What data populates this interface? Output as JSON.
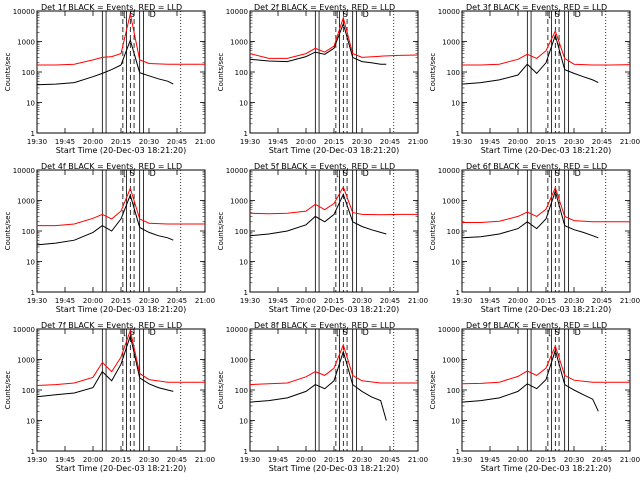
{
  "figure": {
    "xlabel": "Start Time (20-Dec-03 18:21:20)",
    "ylabel": "Counts/sec",
    "x_tick_labels": [
      "19:30",
      "19:45",
      "20:00",
      "20:15",
      "20:30",
      "20:45",
      "21:00"
    ],
    "y_tick_labels": [
      "1",
      "10",
      "100",
      "1000",
      "10000"
    ],
    "colors": {
      "events": "#000000",
      "lld": "#ff0000",
      "axes": "#000000",
      "background": "#ffffff"
    },
    "marker_glyphs": [
      "[",
      "S",
      "D"
    ]
  },
  "chart_data": [
    {
      "type": "line",
      "title": "Det 1f BLACK = Events, RED = LLD",
      "detector": "1f",
      "xlim": [
        "19:30",
        "21:00"
      ],
      "ylim": [
        1,
        10000
      ],
      "yscale": "log",
      "vertical_solid": [
        "20:05",
        "20:07",
        "20:18",
        "20:25",
        "20:27"
      ],
      "vertical_dashed": [
        "20:16",
        "20:20",
        "20:22"
      ],
      "vertical_dotted": [
        "19:30",
        "20:47"
      ],
      "series": [
        {
          "name": "Events",
          "color": "#000000",
          "x": [
            "19:30",
            "19:40",
            "19:50",
            "20:00",
            "20:05",
            "20:10",
            "20:15",
            "20:20",
            "20:25",
            "20:30",
            "20:35",
            "20:40",
            "20:43"
          ],
          "values": [
            38,
            40,
            45,
            70,
            90,
            120,
            170,
            1100,
            95,
            75,
            60,
            50,
            40
          ]
        },
        {
          "name": "LLD",
          "color": "#ff0000",
          "x": [
            "19:30",
            "19:40",
            "19:50",
            "20:00",
            "20:05",
            "20:10",
            "20:15",
            "20:20",
            "20:25",
            "20:30",
            "20:40",
            "20:50",
            "21:00"
          ],
          "values": [
            170,
            170,
            180,
            250,
            300,
            320,
            400,
            8000,
            250,
            190,
            180,
            180,
            180
          ]
        }
      ]
    },
    {
      "type": "line",
      "title": "Det 2f BLACK = Events, RED = LLD",
      "detector": "2f",
      "xlim": [
        "19:30",
        "21:00"
      ],
      "ylim": [
        1,
        10000
      ],
      "yscale": "log",
      "vertical_solid": [
        "20:05",
        "20:07",
        "20:18",
        "20:25",
        "20:27"
      ],
      "vertical_dashed": [
        "20:16",
        "20:20",
        "20:22"
      ],
      "vertical_dotted": [
        "19:30",
        "20:47"
      ],
      "series": [
        {
          "name": "Events",
          "color": "#000000",
          "x": [
            "19:30",
            "19:40",
            "19:50",
            "20:00",
            "20:05",
            "20:10",
            "20:15",
            "20:20",
            "20:25",
            "20:30",
            "20:35",
            "20:40",
            "20:43"
          ],
          "values": [
            260,
            230,
            220,
            320,
            450,
            380,
            600,
            3800,
            300,
            220,
            200,
            180,
            180
          ]
        },
        {
          "name": "LLD",
          "color": "#ff0000",
          "x": [
            "19:30",
            "19:40",
            "19:50",
            "20:00",
            "20:05",
            "20:10",
            "20:15",
            "20:20",
            "20:25",
            "20:30",
            "20:40",
            "20:50",
            "21:00"
          ],
          "values": [
            400,
            280,
            280,
            400,
            600,
            450,
            700,
            6000,
            400,
            300,
            330,
            350,
            360
          ]
        }
      ]
    },
    {
      "type": "line",
      "title": "Det 3f BLACK = Events, RED = LLD",
      "detector": "3f",
      "xlim": [
        "19:30",
        "21:00"
      ],
      "ylim": [
        1,
        10000
      ],
      "yscale": "log",
      "vertical_solid": [
        "20:05",
        "20:07",
        "20:18",
        "20:25",
        "20:27"
      ],
      "vertical_dashed": [
        "20:16",
        "20:20",
        "20:22"
      ],
      "vertical_dotted": [
        "19:30",
        "20:47"
      ],
      "series": [
        {
          "name": "Events",
          "color": "#000000",
          "x": [
            "19:30",
            "19:40",
            "19:50",
            "20:00",
            "20:05",
            "20:10",
            "20:15",
            "20:20",
            "20:25",
            "20:30",
            "20:35",
            "20:40",
            "20:43"
          ],
          "values": [
            40,
            45,
            55,
            80,
            180,
            90,
            200,
            1600,
            120,
            90,
            70,
            55,
            45
          ]
        },
        {
          "name": "LLD",
          "color": "#ff0000",
          "x": [
            "19:30",
            "19:40",
            "19:50",
            "20:00",
            "20:05",
            "20:10",
            "20:15",
            "20:20",
            "20:25",
            "20:30",
            "20:40",
            "20:50",
            "21:00"
          ],
          "values": [
            170,
            170,
            180,
            260,
            380,
            280,
            500,
            2200,
            280,
            180,
            170,
            170,
            175
          ]
        }
      ]
    },
    {
      "type": "line",
      "title": "Det 4f BLACK = Events, RED = LLD",
      "detector": "4f",
      "xlim": [
        "19:30",
        "21:00"
      ],
      "ylim": [
        1,
        10000
      ],
      "yscale": "log",
      "vertical_solid": [
        "20:05",
        "20:07",
        "20:18",
        "20:25",
        "20:27"
      ],
      "vertical_dashed": [
        "20:16",
        "20:20",
        "20:22"
      ],
      "vertical_dotted": [
        "19:30",
        "20:47"
      ],
      "series": [
        {
          "name": "Events",
          "color": "#000000",
          "x": [
            "19:30",
            "19:40",
            "19:50",
            "20:00",
            "20:05",
            "20:10",
            "20:15",
            "20:20",
            "20:25",
            "20:30",
            "20:35",
            "20:40",
            "20:43"
          ],
          "values": [
            35,
            40,
            50,
            90,
            150,
            100,
            250,
            1500,
            130,
            90,
            70,
            60,
            50
          ]
        },
        {
          "name": "LLD",
          "color": "#ff0000",
          "x": [
            "19:30",
            "19:40",
            "19:50",
            "20:00",
            "20:05",
            "20:10",
            "20:15",
            "20:20",
            "20:25",
            "20:30",
            "20:40",
            "20:50",
            "21:00"
          ],
          "values": [
            150,
            150,
            170,
            260,
            350,
            250,
            450,
            2500,
            250,
            180,
            170,
            170,
            170
          ]
        }
      ]
    },
    {
      "type": "line",
      "title": "Det 5f BLACK = Events, RED = LLD",
      "detector": "5f",
      "xlim": [
        "19:30",
        "21:00"
      ],
      "ylim": [
        1,
        10000
      ],
      "yscale": "log",
      "vertical_solid": [
        "20:05",
        "20:07",
        "20:18",
        "20:25",
        "20:27"
      ],
      "vertical_dashed": [
        "20:16",
        "20:20",
        "20:22"
      ],
      "vertical_dotted": [
        "19:30",
        "20:47"
      ],
      "series": [
        {
          "name": "Events",
          "color": "#000000",
          "x": [
            "19:30",
            "19:40",
            "19:50",
            "20:00",
            "20:05",
            "20:10",
            "20:15",
            "20:20",
            "20:25",
            "20:30",
            "20:35",
            "20:40",
            "20:43"
          ],
          "values": [
            70,
            80,
            100,
            160,
            300,
            200,
            350,
            1600,
            200,
            140,
            110,
            90,
            80
          ]
        },
        {
          "name": "LLD",
          "color": "#ff0000",
          "x": [
            "19:30",
            "19:40",
            "19:50",
            "20:00",
            "20:05",
            "20:10",
            "20:15",
            "20:20",
            "20:25",
            "20:30",
            "20:40",
            "20:50",
            "21:00"
          ],
          "values": [
            380,
            370,
            380,
            450,
            750,
            500,
            800,
            2800,
            400,
            350,
            340,
            350,
            350
          ]
        }
      ]
    },
    {
      "type": "line",
      "title": "Det 6f BLACK = Events, RED = LLD",
      "detector": "6f",
      "xlim": [
        "19:30",
        "21:00"
      ],
      "ylim": [
        1,
        10000
      ],
      "yscale": "log",
      "vertical_solid": [
        "20:05",
        "20:07",
        "20:18",
        "20:25",
        "20:27"
      ],
      "vertical_dashed": [
        "20:16",
        "20:20",
        "20:22"
      ],
      "vertical_dotted": [
        "19:30",
        "20:47"
      ],
      "series": [
        {
          "name": "Events",
          "color": "#000000",
          "x": [
            "19:30",
            "19:40",
            "19:50",
            "20:00",
            "20:05",
            "20:10",
            "20:15",
            "20:20",
            "20:25",
            "20:30",
            "20:35",
            "20:40",
            "20:43"
          ],
          "values": [
            60,
            65,
            80,
            120,
            200,
            120,
            250,
            2000,
            150,
            110,
            90,
            70,
            60
          ]
        },
        {
          "name": "LLD",
          "color": "#ff0000",
          "x": [
            "19:30",
            "19:40",
            "19:50",
            "20:00",
            "20:05",
            "20:10",
            "20:15",
            "20:20",
            "20:25",
            "20:30",
            "20:40",
            "20:50",
            "21:00"
          ],
          "values": [
            190,
            190,
            210,
            300,
            420,
            300,
            520,
            2600,
            300,
            220,
            200,
            200,
            200
          ]
        }
      ]
    },
    {
      "type": "line",
      "title": "Det 7f BLACK = Events, RED = LLD",
      "detector": "7f",
      "xlim": [
        "19:30",
        "21:00"
      ],
      "ylim": [
        1,
        10000
      ],
      "yscale": "log",
      "vertical_solid": [
        "20:05",
        "20:07",
        "20:18",
        "20:25",
        "20:27"
      ],
      "vertical_dashed": [
        "20:16",
        "20:20",
        "20:22"
      ],
      "vertical_dotted": [
        "19:30",
        "20:47"
      ],
      "series": [
        {
          "name": "Events",
          "color": "#000000",
          "x": [
            "19:30",
            "19:40",
            "19:50",
            "20:00",
            "20:05",
            "20:10",
            "20:15",
            "20:20",
            "20:25",
            "20:30",
            "20:35",
            "20:40",
            "20:43"
          ],
          "values": [
            60,
            70,
            80,
            120,
            400,
            200,
            700,
            6000,
            250,
            160,
            120,
            100,
            90
          ]
        },
        {
          "name": "LLD",
          "color": "#ff0000",
          "x": [
            "19:30",
            "19:40",
            "19:50",
            "20:00",
            "20:05",
            "20:10",
            "20:15",
            "20:20",
            "20:25",
            "20:30",
            "20:40",
            "20:50",
            "21:00"
          ],
          "values": [
            140,
            150,
            170,
            260,
            800,
            400,
            1200,
            9000,
            350,
            220,
            180,
            180,
            180
          ]
        }
      ]
    },
    {
      "type": "line",
      "title": "Det 8f BLACK = Events, RED = LLD",
      "detector": "8f",
      "xlim": [
        "19:30",
        "21:00"
      ],
      "ylim": [
        1,
        10000
      ],
      "yscale": "log",
      "vertical_solid": [
        "20:05",
        "20:07",
        "20:18",
        "20:25",
        "20:27"
      ],
      "vertical_dashed": [
        "20:16",
        "20:20",
        "20:22"
      ],
      "vertical_dotted": [
        "19:30",
        "20:47"
      ],
      "series": [
        {
          "name": "Events",
          "color": "#000000",
          "x": [
            "19:30",
            "19:40",
            "19:50",
            "20:00",
            "20:05",
            "20:10",
            "20:15",
            "20:20",
            "20:25",
            "20:30",
            "20:35",
            "20:40",
            "20:43"
          ],
          "values": [
            40,
            45,
            55,
            90,
            150,
            110,
            200,
            1800,
            150,
            90,
            60,
            45,
            10
          ]
        },
        {
          "name": "LLD",
          "color": "#ff0000",
          "x": [
            "19:30",
            "19:40",
            "19:50",
            "20:00",
            "20:05",
            "20:10",
            "20:15",
            "20:20",
            "20:25",
            "20:30",
            "20:40",
            "20:50",
            "21:00"
          ],
          "values": [
            150,
            160,
            170,
            270,
            400,
            300,
            520,
            3000,
            300,
            200,
            170,
            170,
            170
          ]
        }
      ]
    },
    {
      "type": "line",
      "title": "Det 9f BLACK = Events, RED = LLD",
      "detector": "9f",
      "xlim": [
        "19:30",
        "21:00"
      ],
      "ylim": [
        1,
        10000
      ],
      "yscale": "log",
      "vertical_solid": [
        "20:05",
        "20:07",
        "20:18",
        "20:25",
        "20:27"
      ],
      "vertical_dashed": [
        "20:16",
        "20:20",
        "20:22"
      ],
      "vertical_dotted": [
        "19:30",
        "20:47"
      ],
      "series": [
        {
          "name": "Events",
          "color": "#000000",
          "x": [
            "19:30",
            "19:40",
            "19:50",
            "20:00",
            "20:05",
            "20:10",
            "20:15",
            "20:20",
            "20:25",
            "20:30",
            "20:35",
            "20:40",
            "20:43"
          ],
          "values": [
            40,
            45,
            55,
            90,
            160,
            110,
            220,
            2000,
            150,
            100,
            70,
            50,
            20
          ]
        },
        {
          "name": "LLD",
          "color": "#ff0000",
          "x": [
            "19:30",
            "19:40",
            "19:50",
            "20:00",
            "20:05",
            "20:10",
            "20:15",
            "20:20",
            "20:25",
            "20:30",
            "20:40",
            "20:50",
            "21:00"
          ],
          "values": [
            160,
            165,
            180,
            280,
            420,
            300,
            520,
            2800,
            300,
            210,
            180,
            180,
            180
          ]
        }
      ]
    }
  ]
}
